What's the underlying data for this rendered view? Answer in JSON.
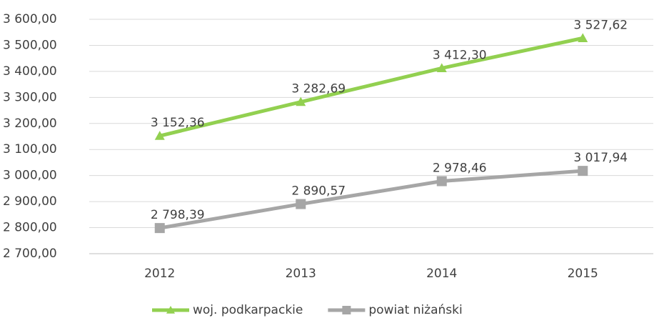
{
  "chart_data": {
    "type": "line",
    "categories": [
      "2012",
      "2013",
      "2014",
      "2015"
    ],
    "series": [
      {
        "name": "woj. podkarpackie",
        "color": "#92d050",
        "marker": "triangle",
        "values": [
          3152.36,
          3282.69,
          3412.3,
          3527.62
        ],
        "value_labels": [
          "3 152,36",
          "3 282,69",
          "3 412,30",
          "3 527,62"
        ]
      },
      {
        "name": "powiat niżański",
        "color": "#a6a6a6",
        "marker": "square",
        "values": [
          2798.39,
          2890.57,
          2978.46,
          3017.94
        ],
        "value_labels": [
          "2 798,39",
          "2 890,57",
          "2 978,46",
          "3 017,94"
        ]
      }
    ],
    "ylim": [
      2700,
      3600
    ],
    "yticks": [
      {
        "value": 2700,
        "label": "2 700,00"
      },
      {
        "value": 2800,
        "label": "2 800,00"
      },
      {
        "value": 2900,
        "label": "2 900,00"
      },
      {
        "value": 3000,
        "label": "3 000,00"
      },
      {
        "value": 3100,
        "label": "3 100,00"
      },
      {
        "value": 3200,
        "label": "3 200,00"
      },
      {
        "value": 3300,
        "label": "3 300,00"
      },
      {
        "value": 3400,
        "label": "3 400,00"
      },
      {
        "value": 3500,
        "label": "3 500,00"
      },
      {
        "value": 3600,
        "label": "3 600,00"
      }
    ],
    "grid": true,
    "legend": "bottom"
  }
}
